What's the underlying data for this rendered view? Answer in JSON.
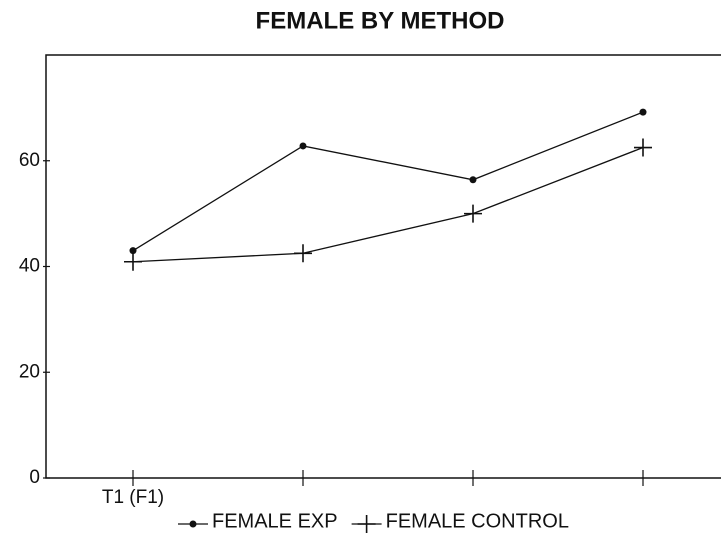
{
  "chart_data": {
    "type": "line",
    "title": "FEMALE BY METHOD",
    "categories": [
      "T1 (F1)",
      null,
      null,
      null
    ],
    "series": [
      {
        "name": "FEMALE EXP",
        "color": "#111111",
        "marker": "circle",
        "values": [
          43,
          62.8,
          56.4,
          69.2
        ]
      },
      {
        "name": "FEMALE CONTROL",
        "color": "#111111",
        "marker": "plus",
        "values": [
          40.9,
          42.5,
          50,
          62.5
        ]
      }
    ],
    "ylim": [
      0,
      80
    ],
    "yticks": [
      0,
      20,
      40,
      60
    ],
    "grid": false,
    "legend": "bottom"
  }
}
